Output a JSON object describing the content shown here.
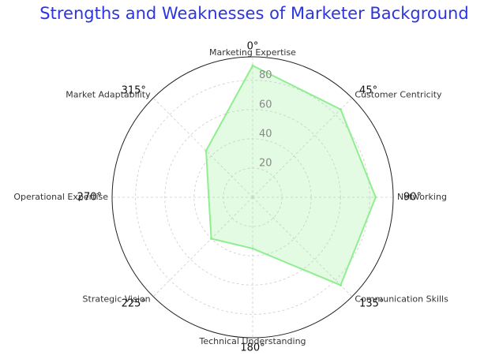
{
  "chart_data": {
    "type": "radar",
    "title": "Strengths and Weaknesses of Marketer Background",
    "categories": [
      "Marketing Expertise",
      "Customer Centricity",
      "Networking",
      "Communication Skills",
      "Technical Understanding",
      "Strategic Vision",
      "Operational Expertise",
      "Market Adaptability"
    ],
    "values": [
      90,
      85,
      84,
      85,
      35,
      40,
      30,
      45
    ],
    "color": "#90ee90",
    "ylim": [
      0,
      96
    ],
    "yticks": [
      20,
      40,
      60,
      80
    ],
    "theta_ticks": [
      {
        "value": 0,
        "label": "0°"
      },
      {
        "value": 45,
        "label": "45°"
      },
      {
        "value": 90,
        "label": "90°"
      },
      {
        "value": 135,
        "label": "135°"
      },
      {
        "value": 180,
        "label": "180°"
      },
      {
        "value": 225,
        "label": "225°"
      },
      {
        "value": 270,
        "label": "270°"
      },
      {
        "value": 315,
        "label": "315°"
      }
    ],
    "grid": true
  }
}
